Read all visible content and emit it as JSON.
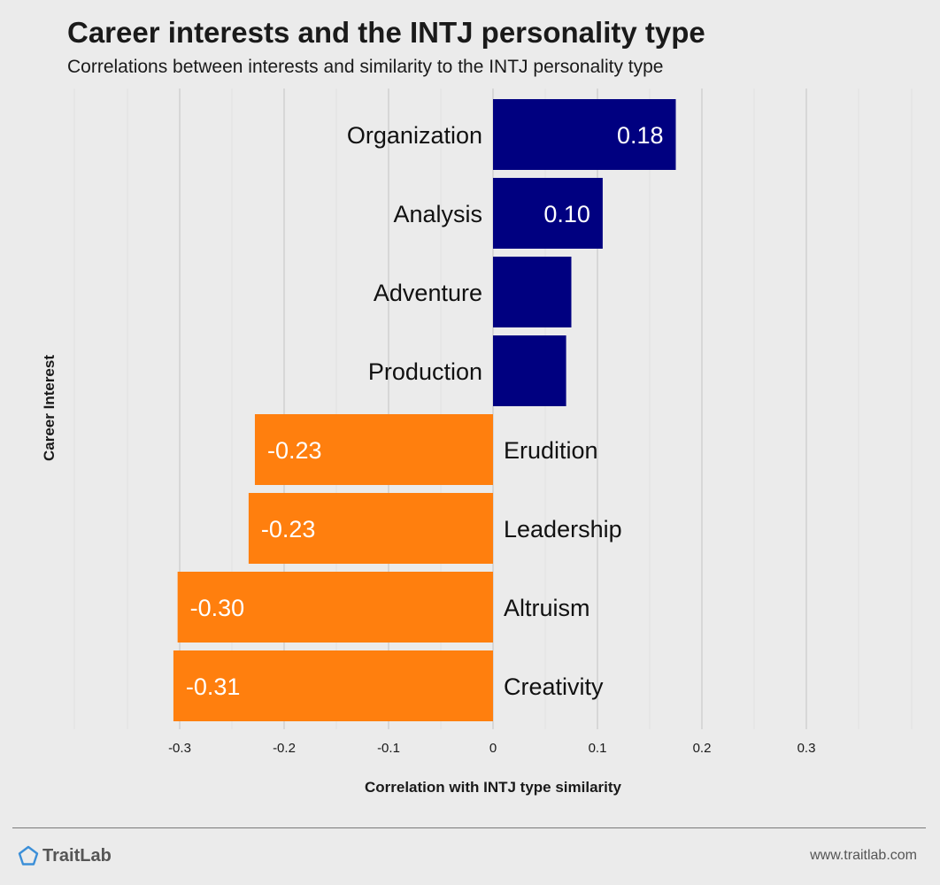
{
  "header": {
    "title": "Career interests and the INTJ personality type",
    "subtitle": "Correlations between interests and similarity to the INTJ personality type"
  },
  "chart_data": {
    "type": "bar",
    "orientation": "horizontal",
    "title": "Career interests and the INTJ personality type",
    "subtitle": "Correlations between interests and similarity to the INTJ personality type",
    "xlabel": "Correlation with INTJ type similarity",
    "ylabel": "Career Interest",
    "xlim": [
      -0.4,
      0.4
    ],
    "xticks": [
      "-0.3",
      "-0.2",
      "-0.1",
      "0",
      "0.1",
      "0.2",
      "0.3"
    ],
    "xtick_values": [
      -0.3,
      -0.2,
      -0.1,
      0,
      0.1,
      0.2,
      0.3
    ],
    "grid": true,
    "positive_color": "#000080",
    "negative_color": "#ff7f0e",
    "categories": [
      "Organization",
      "Analysis",
      "Adventure",
      "Production",
      "Erudition",
      "Leadership",
      "Altruism",
      "Creativity"
    ],
    "values": [
      0.175,
      0.105,
      0.075,
      0.07,
      -0.228,
      -0.234,
      -0.302,
      -0.306
    ],
    "data_labels": [
      "0.18",
      "0.10",
      "",
      "",
      "-0.23",
      "-0.23",
      "-0.30",
      "-0.31"
    ]
  },
  "footer": {
    "brand": "TraitLab",
    "url": "www.traitlab.com",
    "logo_color": "#3b8fd8"
  }
}
